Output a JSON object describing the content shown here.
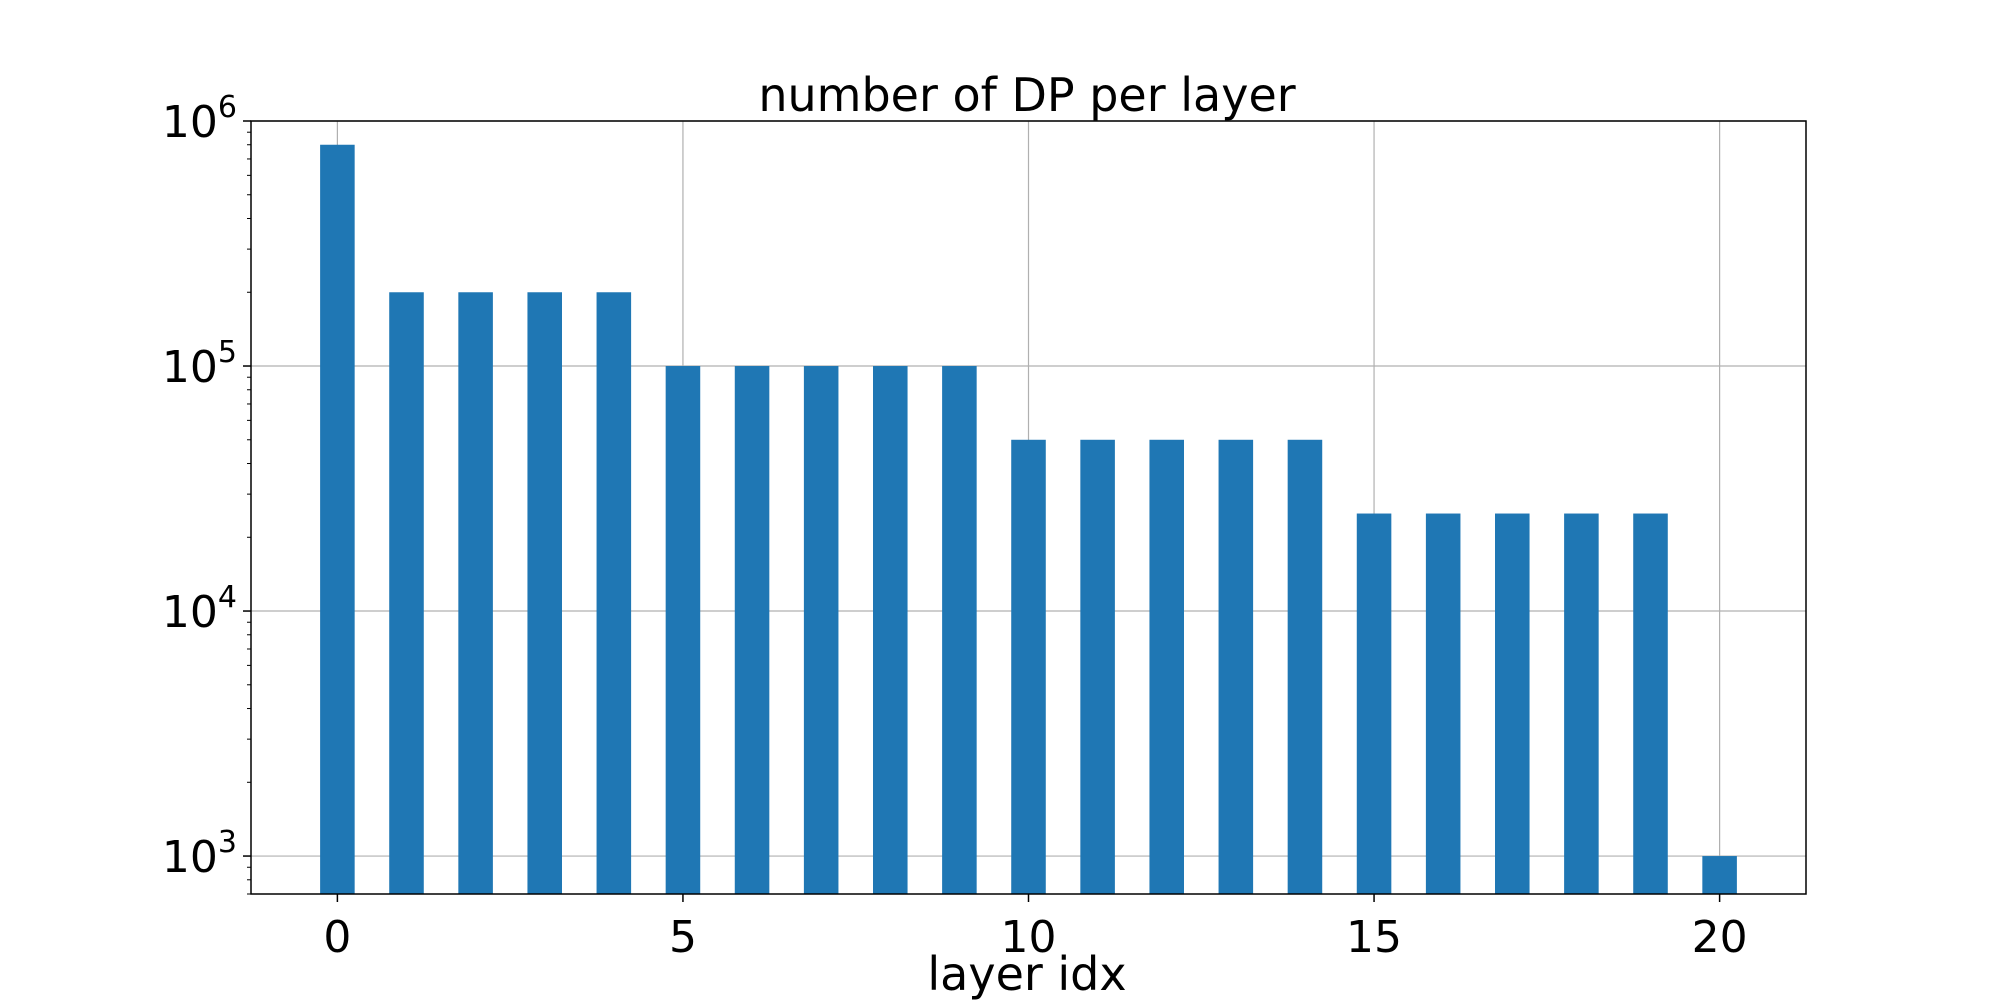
{
  "chart_data": {
    "type": "bar",
    "title": "number of DP per layer",
    "xlabel": "layer idx",
    "ylabel": "",
    "yscale": "log",
    "grid": true,
    "bar_color": "#1f77b4",
    "x": [
      0,
      1,
      2,
      3,
      4,
      5,
      6,
      7,
      8,
      9,
      10,
      11,
      12,
      13,
      14,
      15,
      16,
      17,
      18,
      19,
      20
    ],
    "values": [
      800000,
      200000,
      200000,
      200000,
      200000,
      100000,
      100000,
      100000,
      100000,
      100000,
      50000,
      50000,
      50000,
      50000,
      50000,
      25000,
      25000,
      25000,
      25000,
      25000,
      1000
    ],
    "xlim": [
      -1.25,
      21.25
    ],
    "ylim": [
      700,
      1000000
    ],
    "xticks": [
      0,
      5,
      10,
      15,
      20
    ],
    "yticks": [
      1000,
      10000,
      100000,
      1000000
    ],
    "ytick_labels": [
      {
        "base": "10",
        "exp": "3"
      },
      {
        "base": "10",
        "exp": "4"
      },
      {
        "base": "10",
        "exp": "5"
      },
      {
        "base": "10",
        "exp": "6"
      }
    ]
  }
}
